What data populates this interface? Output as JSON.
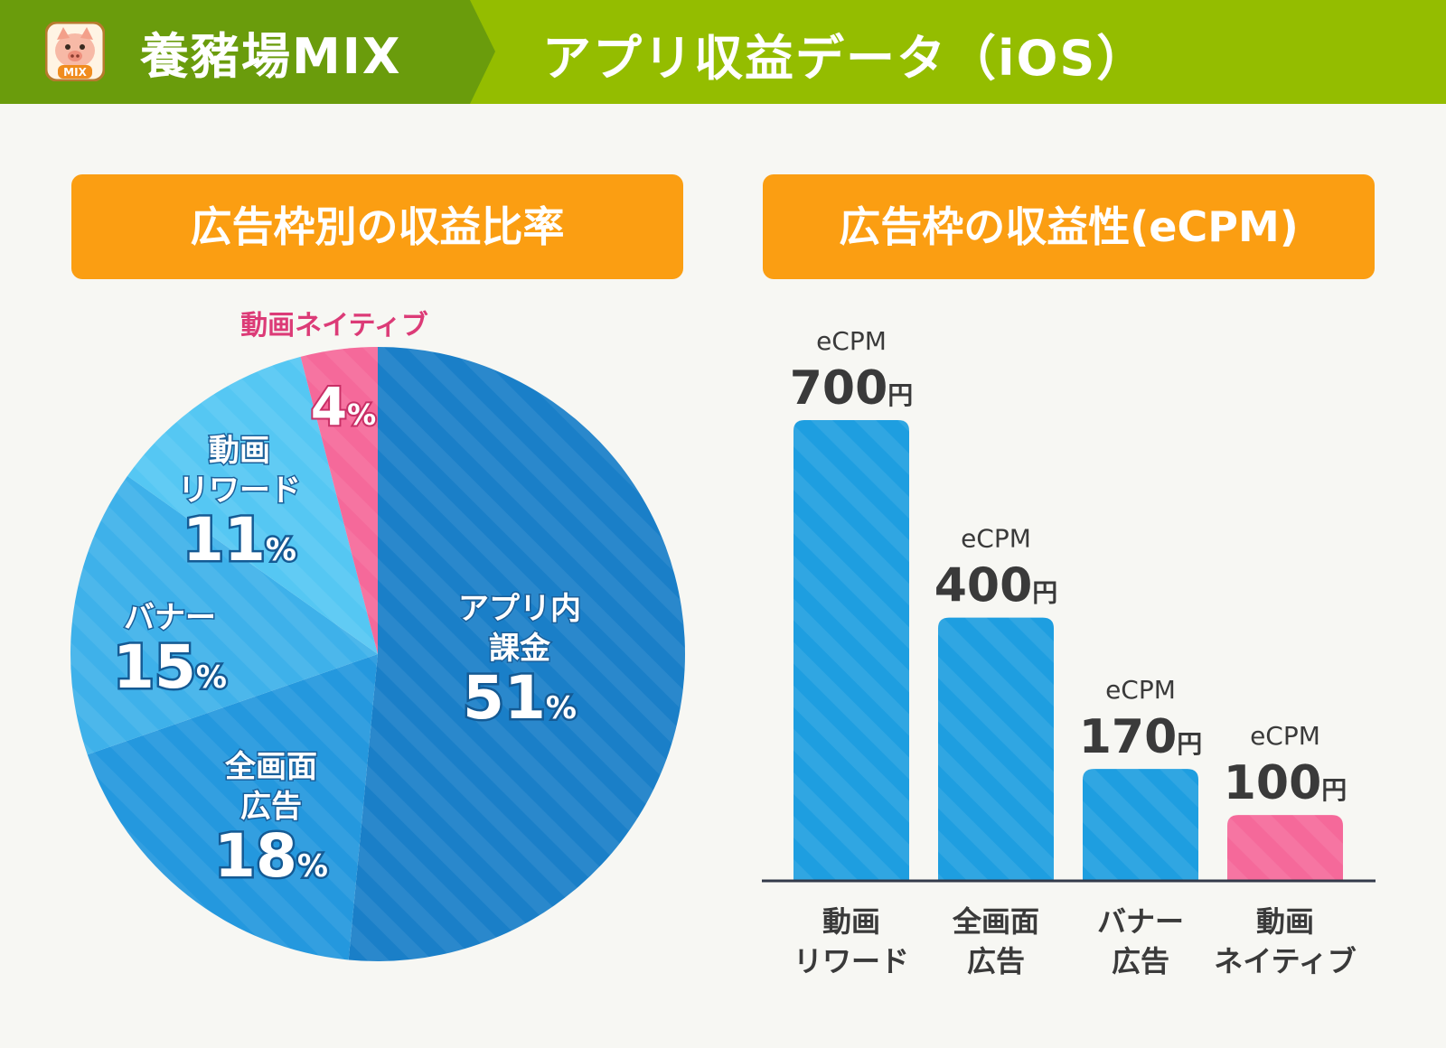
{
  "header": {
    "app_name": "養豬場MIX",
    "page_title": "アプリ収益データ（iOS）",
    "logo_icon": "pig-face-icon",
    "logo_badge": "MIX",
    "colors": {
      "dark_green": "#6a9c0c",
      "light_green": "#94bd00"
    }
  },
  "sections": {
    "pie_title": "広告枠別の収益比率",
    "bar_title": "広告枠の収益性(eCPM)"
  },
  "chart_data": [
    {
      "type": "pie",
      "title": "広告枠別の収益比率",
      "unit": "%",
      "slices": [
        {
          "label": "アプリ内課金",
          "label_lines": [
            "アプリ内",
            "課金"
          ],
          "value": 51,
          "color": "#1a7fc8"
        },
        {
          "label": "全画面広告",
          "label_lines": [
            "全画面",
            "広告"
          ],
          "value": 18,
          "color": "#2498de"
        },
        {
          "label": "バナー",
          "label_lines": [
            "バナー"
          ],
          "value": 15,
          "color": "#3eb1ea"
        },
        {
          "label": "動画リワード",
          "label_lines": [
            "動画",
            "リワード"
          ],
          "value": 11,
          "color": "#55c7f3"
        },
        {
          "label": "動画ネイティブ",
          "label_lines": [
            "動画ネイティブ"
          ],
          "value": 4,
          "color": "#f5699a"
        }
      ]
    },
    {
      "type": "bar",
      "title": "広告枠の収益性(eCPM)",
      "value_prefix": "eCPM",
      "unit": "円",
      "ylim": [
        0,
        700
      ],
      "categories": [
        "動画リワード",
        "全画面広告",
        "バナー広告",
        "動画ネイティブ"
      ],
      "category_lines": [
        [
          "動画",
          "リワード"
        ],
        [
          "全画面",
          "広告"
        ],
        [
          "バナー",
          "広告"
        ],
        [
          "動画",
          "ネイティブ"
        ]
      ],
      "values": [
        700,
        400,
        170,
        100
      ],
      "colors": [
        "#1e9ee0",
        "#1e9ee0",
        "#1e9ee0",
        "#f5699a"
      ]
    }
  ]
}
